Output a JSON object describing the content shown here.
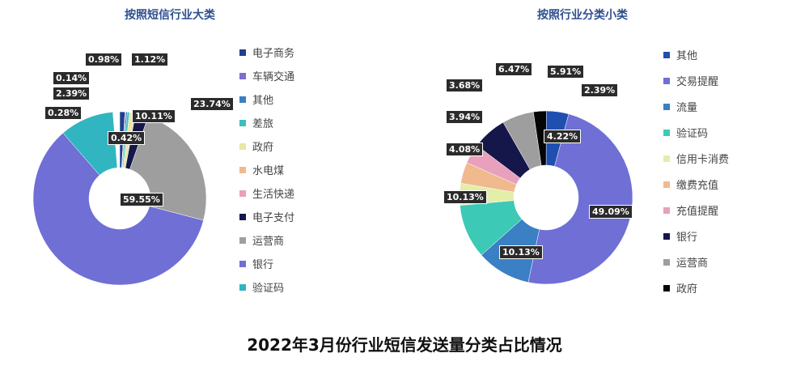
{
  "main_title": "2022年3月份行业短信发送量分类占比情况",
  "chart_data": [
    {
      "type": "pie",
      "donut": true,
      "title": "按照短信行业大类",
      "legend_position": "right",
      "categories": [
        "电子商务",
        "车辆交通",
        "其他",
        "差旅",
        "政府",
        "水电煤",
        "生活快递",
        "电子支付",
        "运营商",
        "银行",
        "验证码"
      ],
      "values": [
        0.98,
        0.14,
        0.28,
        0.42,
        1.12,
        null,
        null,
        2.39,
        23.74,
        59.55,
        10.11
      ],
      "labels": [
        "0.98%",
        "0.14%",
        "0.28%",
        "0.42%",
        "1.12%",
        null,
        null,
        "2.39%",
        "23.74%",
        "59.55%",
        "10.11%"
      ],
      "colors": [
        "#1f3f8f",
        "#7b6fd0",
        "#3b7fc4",
        "#3cc1b8",
        "#e8e6a8",
        "#f0b98e",
        "#e8a0bc",
        "#15164a",
        "#9e9e9e",
        "#6f6fd6",
        "#31b5c0"
      ]
    },
    {
      "type": "pie",
      "donut": true,
      "title": "按照行业分类小类",
      "legend_position": "right",
      "categories": [
        "其他",
        "交易提醒",
        "流量",
        "验证码",
        "信用卡消费",
        "缴费充值",
        "充值提醒",
        "银行",
        "运营商",
        "政府"
      ],
      "values": [
        4.22,
        49.09,
        10.13,
        10.13,
        4.08,
        3.94,
        3.68,
        6.47,
        5.91,
        2.39
      ],
      "labels": [
        "4.22%",
        "49.09%",
        "10.13%",
        "10.13%",
        "4.08%",
        "3.94%",
        "3.68%",
        "6.47%",
        "5.91%",
        "2.39%"
      ],
      "colors": [
        "#1f4fb0",
        "#6f6fd6",
        "#3b7fc4",
        "#3cc9b5",
        "#e3eea8",
        "#f0b98e",
        "#e8a0bc",
        "#15164a",
        "#9e9e9e",
        "#050505"
      ]
    }
  ]
}
